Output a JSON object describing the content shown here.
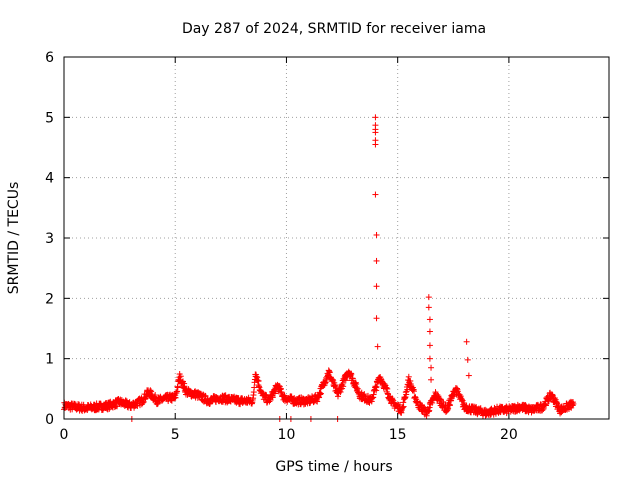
{
  "chart_data": {
    "type": "scatter",
    "title": "Day 287 of 2024, SRMTID for receiver iama",
    "xlabel": "GPS time / hours",
    "ylabel": "SRMTID / TECUs",
    "xlim": [
      0,
      24.5
    ],
    "ylim": [
      0,
      6
    ],
    "x_ticks": [
      0,
      5,
      10,
      15,
      20
    ],
    "y_ticks": [
      0,
      1,
      2,
      3,
      4,
      5,
      6
    ],
    "grid": true,
    "marker": "+",
    "color": "#ff0000",
    "series": [
      {
        "name": "SRMTID",
        "baseline": [
          [
            0.0,
            0.22
          ],
          [
            0.5,
            0.2
          ],
          [
            1.0,
            0.18
          ],
          [
            1.5,
            0.2
          ],
          [
            2.0,
            0.22
          ],
          [
            2.5,
            0.28
          ],
          [
            3.0,
            0.22
          ],
          [
            3.5,
            0.3
          ],
          [
            3.8,
            0.45
          ],
          [
            4.2,
            0.3
          ],
          [
            4.7,
            0.35
          ],
          [
            5.0,
            0.35
          ],
          [
            5.2,
            0.7
          ],
          [
            5.5,
            0.45
          ],
          [
            6.0,
            0.4
          ],
          [
            6.5,
            0.3
          ],
          [
            7.0,
            0.35
          ],
          [
            7.5,
            0.32
          ],
          [
            8.0,
            0.3
          ],
          [
            8.5,
            0.3
          ],
          [
            8.6,
            0.78
          ],
          [
            8.9,
            0.4
          ],
          [
            9.2,
            0.3
          ],
          [
            9.6,
            0.55
          ],
          [
            9.9,
            0.35
          ],
          [
            10.4,
            0.3
          ],
          [
            11.0,
            0.3
          ],
          [
            11.4,
            0.35
          ],
          [
            11.9,
            0.78
          ],
          [
            12.3,
            0.4
          ],
          [
            12.8,
            0.8
          ],
          [
            13.3,
            0.4
          ],
          [
            13.8,
            0.3
          ],
          [
            14.2,
            0.7
          ],
          [
            14.8,
            0.25
          ],
          [
            15.2,
            0.15
          ],
          [
            15.5,
            0.65
          ],
          [
            15.9,
            0.25
          ],
          [
            16.3,
            0.1
          ],
          [
            16.7,
            0.4
          ],
          [
            17.2,
            0.15
          ],
          [
            17.6,
            0.5
          ],
          [
            18.0,
            0.2
          ],
          [
            18.4,
            0.15
          ],
          [
            19.0,
            0.1
          ],
          [
            19.5,
            0.15
          ],
          [
            20.0,
            0.15
          ],
          [
            20.5,
            0.2
          ],
          [
            21.0,
            0.15
          ],
          [
            21.5,
            0.2
          ],
          [
            21.9,
            0.4
          ],
          [
            22.3,
            0.15
          ],
          [
            22.6,
            0.2
          ],
          [
            22.9,
            0.25
          ]
        ],
        "spikes": [
          [
            14.0,
            5.0
          ],
          [
            14.0,
            4.87
          ],
          [
            14.0,
            4.8
          ],
          [
            14.0,
            4.75
          ],
          [
            14.0,
            4.62
          ],
          [
            14.0,
            4.55
          ],
          [
            14.0,
            3.72
          ],
          [
            14.05,
            3.05
          ],
          [
            14.05,
            2.62
          ],
          [
            14.05,
            2.2
          ],
          [
            14.05,
            1.67
          ],
          [
            14.1,
            1.2
          ],
          [
            16.4,
            2.02
          ],
          [
            16.4,
            1.85
          ],
          [
            16.45,
            1.65
          ],
          [
            16.45,
            1.45
          ],
          [
            16.45,
            1.22
          ],
          [
            16.45,
            1.0
          ],
          [
            16.5,
            0.85
          ],
          [
            16.5,
            0.65
          ],
          [
            18.1,
            1.28
          ],
          [
            18.15,
            0.98
          ],
          [
            18.2,
            0.72
          ],
          [
            3.05,
            0.0
          ],
          [
            9.7,
            0.0
          ],
          [
            10.2,
            0.0
          ],
          [
            11.1,
            0.0
          ],
          [
            12.3,
            0.0
          ]
        ]
      }
    ]
  }
}
